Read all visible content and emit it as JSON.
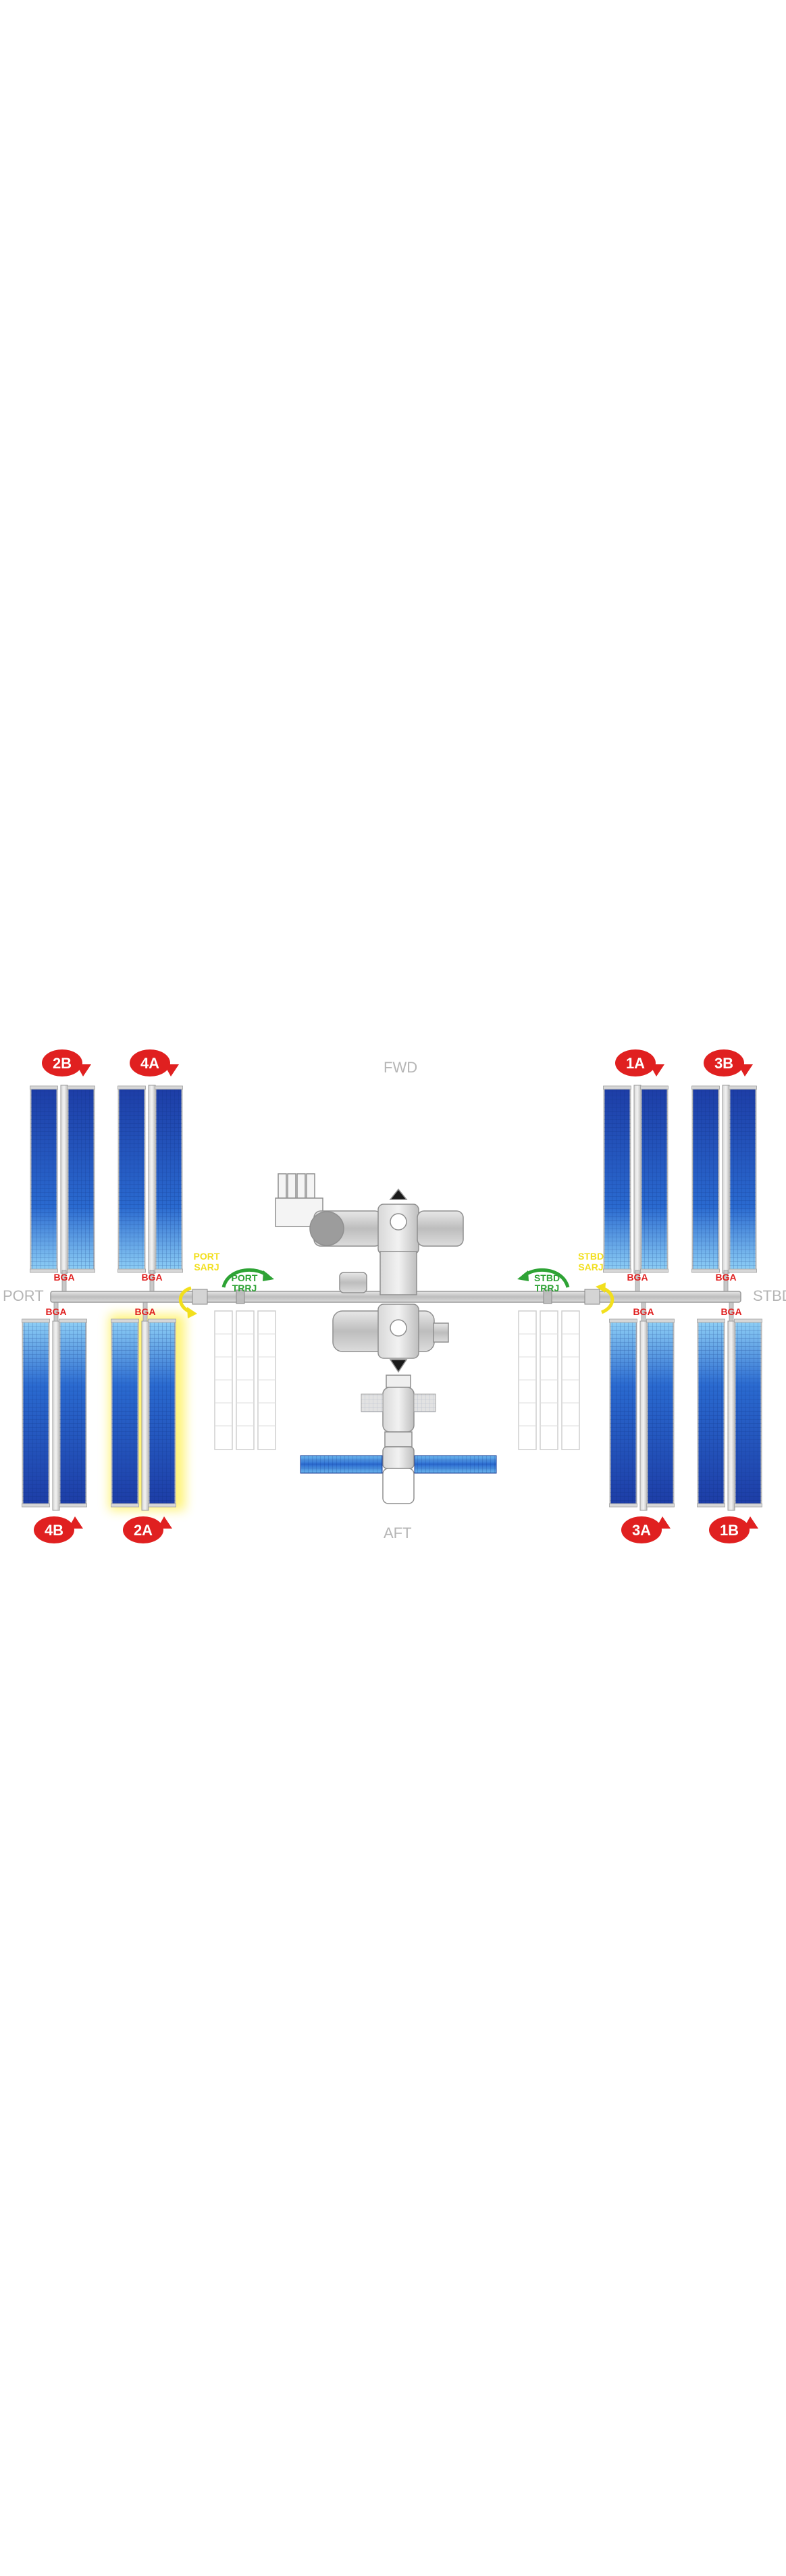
{
  "directions": {
    "fwd": "FWD",
    "aft": "AFT",
    "port": "PORT",
    "stbd": "STBD"
  },
  "wings": [
    {
      "id": "2B",
      "label": "2B"
    },
    {
      "id": "4A",
      "label": "4A"
    },
    {
      "id": "1A",
      "label": "1A"
    },
    {
      "id": "3B",
      "label": "3B"
    },
    {
      "id": "4B",
      "label": "4B"
    },
    {
      "id": "2A",
      "label": "2A",
      "highlighted": true
    },
    {
      "id": "3A",
      "label": "3A"
    },
    {
      "id": "1B",
      "label": "1B"
    }
  ],
  "joints": {
    "bga": "BGA",
    "port_sarj_line1": "PORT",
    "port_sarj_line2": "SARJ",
    "stbd_sarj_line1": "STBD",
    "stbd_sarj_line2": "SARJ",
    "port_trrj_line1": "PORT",
    "port_trrj_line2": "TRRJ",
    "stbd_trrj_line1": "STBD",
    "stbd_trrj_line2": "TRRJ"
  },
  "colors": {
    "bga_red": "#e02020",
    "sarj_yellow": "#f2df1d",
    "trrj_green": "#2ea335",
    "panel_blue": "#1b3fa8",
    "highlight_yellow": "#fff36b",
    "truss_grey": "#c9c9c9"
  }
}
